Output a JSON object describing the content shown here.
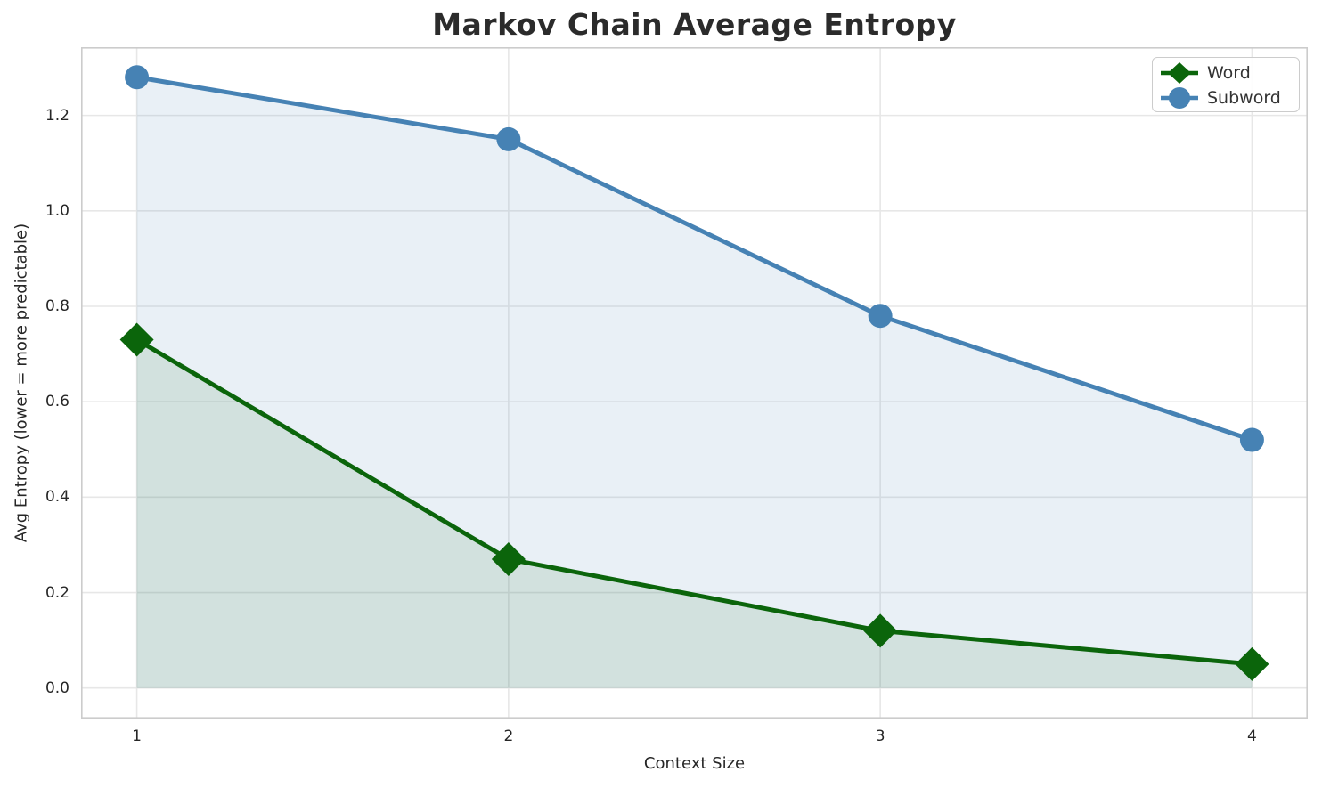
{
  "chart_data": {
    "type": "line",
    "title": "Markov Chain Average Entropy",
    "xlabel": "Context Size",
    "ylabel": "Avg Entropy (lower = more predictable)",
    "x": [
      1,
      2,
      3,
      4
    ],
    "series": [
      {
        "name": "Word",
        "values": [
          0.73,
          0.27,
          0.12,
          0.05
        ],
        "color": "#0b650b",
        "marker": "diamond",
        "fill_to_zero": true,
        "fill_alpha": 0.1
      },
      {
        "name": "Subword",
        "values": [
          1.28,
          1.15,
          0.78,
          0.52
        ],
        "color": "#4682b4",
        "marker": "circle",
        "fill_to_zero": true,
        "fill_alpha": 0.12
      }
    ],
    "xlim": [
      0.85,
      4.15
    ],
    "ylim": [
      -0.064,
      1.343
    ],
    "x_ticks": [
      {
        "value": 1,
        "label": "1"
      },
      {
        "value": 2,
        "label": "2"
      },
      {
        "value": 3,
        "label": "3"
      },
      {
        "value": 4,
        "label": "4"
      }
    ],
    "y_ticks": [
      {
        "value": 0.0,
        "label": "0.0"
      },
      {
        "value": 0.2,
        "label": "0.2"
      },
      {
        "value": 0.4,
        "label": "0.4"
      },
      {
        "value": 0.6,
        "label": "0.6"
      },
      {
        "value": 0.8,
        "label": "0.8"
      },
      {
        "value": 1.0,
        "label": "1.0"
      },
      {
        "value": 1.2,
        "label": "1.2"
      }
    ],
    "grid": true,
    "grid_color": "#e7e7e7",
    "spine_color": "#cccccc",
    "legend_position": "upper right",
    "text_color": "#262626",
    "title_color": "#2b2b2b"
  }
}
